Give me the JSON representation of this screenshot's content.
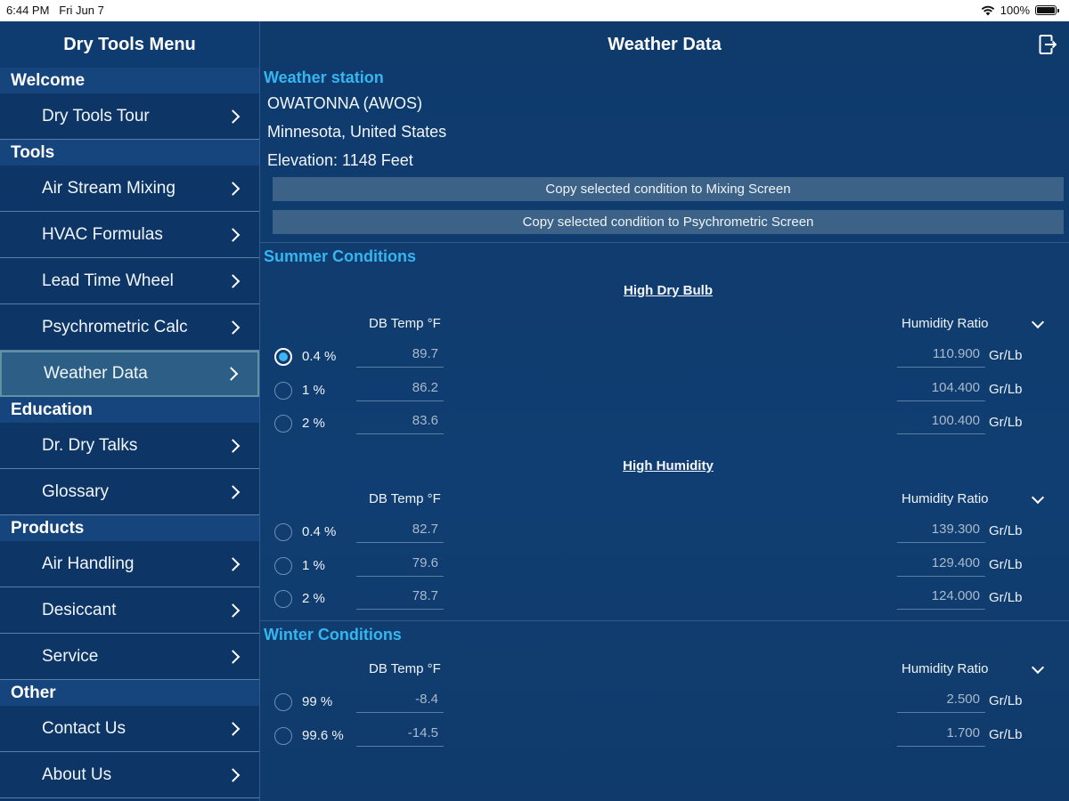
{
  "status": {
    "time": "6:44 PM",
    "date": "Fri Jun 7",
    "battery": "100%",
    "battery_level": 1.0
  },
  "sidebar": {
    "title": "Dry Tools Menu",
    "sections": [
      {
        "label": "Welcome",
        "items": [
          {
            "label": "Dry Tools Tour"
          }
        ]
      },
      {
        "label": "Tools",
        "items": [
          {
            "label": "Air Stream Mixing"
          },
          {
            "label": "HVAC Formulas"
          },
          {
            "label": "Lead Time Wheel"
          },
          {
            "label": "Psychrometric Calc"
          },
          {
            "label": "Weather Data",
            "active": true
          }
        ]
      },
      {
        "label": "Education",
        "items": [
          {
            "label": "Dr. Dry Talks"
          },
          {
            "label": "Glossary"
          }
        ]
      },
      {
        "label": "Products",
        "items": [
          {
            "label": "Air Handling"
          },
          {
            "label": "Desiccant"
          },
          {
            "label": "Service"
          }
        ]
      },
      {
        "label": "Other",
        "items": [
          {
            "label": "Contact Us"
          },
          {
            "label": "About Us"
          }
        ]
      }
    ]
  },
  "main": {
    "title": "Weather Data",
    "station": {
      "heading": "Weather station",
      "name": "OWATONNA (AWOS)",
      "location": "Minnesota, United States",
      "elevation": "Elevation: 1148 Feet"
    },
    "buttons": {
      "copy_mixing": "Copy selected condition to Mixing Screen",
      "copy_psychro": "Copy selected condition to Psychrometric Screen"
    },
    "summer": {
      "heading": "Summer Conditions",
      "high_dry_bulb": {
        "title": "High Dry Bulb",
        "db_header": "DB Temp °F",
        "hr_header": "Humidity Ratio",
        "rows": [
          {
            "pct": "0.4 %",
            "db": "89.7",
            "hr": "110.900",
            "unit": "Gr/Lb",
            "selected": true
          },
          {
            "pct": "1 %",
            "db": "86.2",
            "hr": "104.400",
            "unit": "Gr/Lb"
          },
          {
            "pct": "2 %",
            "db": "83.6",
            "hr": "100.400",
            "unit": "Gr/Lb"
          }
        ]
      },
      "high_humidity": {
        "title": "High Humidity",
        "db_header": "DB Temp °F",
        "hr_header": "Humidity Ratio",
        "rows": [
          {
            "pct": "0.4 %",
            "db": "82.7",
            "hr": "139.300",
            "unit": "Gr/Lb"
          },
          {
            "pct": "1 %",
            "db": "79.6",
            "hr": "129.400",
            "unit": "Gr/Lb"
          },
          {
            "pct": "2 %",
            "db": "78.7",
            "hr": "124.000",
            "unit": "Gr/Lb"
          }
        ]
      }
    },
    "winter": {
      "heading": "Winter Conditions",
      "db_header": "DB Temp °F",
      "hr_header": "Humidity Ratio",
      "rows": [
        {
          "pct": "99 %",
          "db": "-8.4",
          "hr": "2.500",
          "unit": "Gr/Lb"
        },
        {
          "pct": "99.6 %",
          "db": "-14.5",
          "hr": "1.700",
          "unit": "Gr/Lb"
        }
      ]
    }
  }
}
